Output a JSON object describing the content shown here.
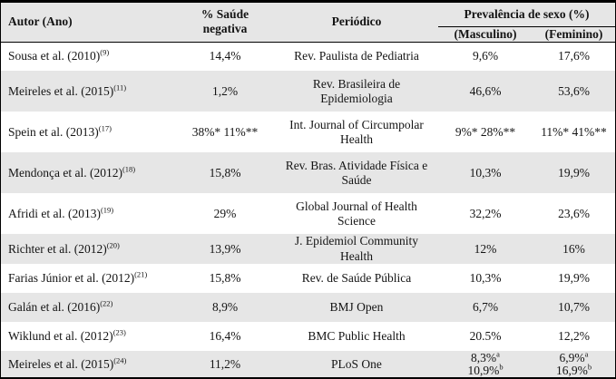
{
  "colors": {
    "border": "#000000",
    "header_bg": "#e6e6e6",
    "row_shade": "#e6e6e6",
    "text": "#141414"
  },
  "table": {
    "headers": {
      "autor": "Autor (Ano)",
      "saude": "% Saúde\nnegativa",
      "periodico": "Periódico",
      "prevalencia": "Prevalência de sexo (%)",
      "masculino": "(Masculino)",
      "feminino": "(Feminino)"
    },
    "rows": [
      {
        "author": "Sousa et al.  (2010)",
        "ref": "(9)",
        "negative": "14,4%",
        "journal": [
          "Rev. Paulista de Pediatria"
        ],
        "male": [
          {
            "text": "9,6%"
          }
        ],
        "female": [
          {
            "text": "17,6%"
          }
        ]
      },
      {
        "author": "Meireles et al. (2015)",
        "ref": "(11)",
        "negative": "1,2%",
        "journal": [
          "Rev. Brasileira de",
          "Epidemiologia"
        ],
        "male": [
          {
            "text": "46,6%"
          }
        ],
        "female": [
          {
            "text": "53,6%"
          }
        ]
      },
      {
        "author": "Spein et al. (2013)",
        "ref": "(17)",
        "negative": "38%* 11%**",
        "journal": [
          "Int. Journal of Circumpolar",
          "Health"
        ],
        "male": [
          {
            "text": "9%* 28%**"
          }
        ],
        "female": [
          {
            "text": "11%* 41%**"
          }
        ]
      },
      {
        "author": "Mendonça et al.  (2012)",
        "ref": "(18)",
        "negative": "15,8%",
        "journal": [
          "Rev. Bras. Atividade Física e",
          "Saúde"
        ],
        "male": [
          {
            "text": "10,3%"
          }
        ],
        "female": [
          {
            "text": "19,9%"
          }
        ]
      },
      {
        "author": "Afridi et al. (2013)",
        "ref": "(19)",
        "negative": "29%",
        "journal": [
          "Global Journal of Health",
          "Science"
        ],
        "male": [
          {
            "text": "32,2%"
          }
        ],
        "female": [
          {
            "text": "23,6%"
          }
        ]
      },
      {
        "author": "Richter et al. (2012)",
        "ref": "(20)",
        "negative": "13,9%",
        "journal": [
          "J. Epidemiol Community Health"
        ],
        "male": [
          {
            "text": "12%"
          }
        ],
        "female": [
          {
            "text": "16%"
          }
        ]
      },
      {
        "author": "Farias Júnior et al.  (2012)",
        "ref": "(21)",
        "negative": "15,8%",
        "journal": [
          "Rev. de Saúde Pública"
        ],
        "male": [
          {
            "text": "10,3%"
          }
        ],
        "female": [
          {
            "text": "19,9%"
          }
        ]
      },
      {
        "author": "Galán et al. (2016)",
        "ref": "(22)",
        "negative": "8,9%",
        "journal": [
          "BMJ Open"
        ],
        "male": [
          {
            "text": "6,7%"
          }
        ],
        "female": [
          {
            "text": "10,7%"
          }
        ]
      },
      {
        "author": "Wiklund et al. (2012)",
        "ref": "(23)",
        "negative": "16,4%",
        "journal": [
          "BMC Public Health"
        ],
        "male": [
          {
            "text": "20.5%"
          }
        ],
        "female": [
          {
            "text": "12,2%"
          }
        ]
      },
      {
        "author": "Meireles et al. (2015)",
        "ref": "(24)",
        "negative": "11,2%",
        "journal": [
          "PLoS One"
        ],
        "male": [
          {
            "text": "8,3%",
            "sup": "a"
          },
          {
            "text": "10,9%",
            "sup": "b"
          }
        ],
        "female": [
          {
            "text": "6,9%",
            "sup": "a"
          },
          {
            "text": "16,9%",
            "sup": "b"
          }
        ]
      }
    ]
  }
}
